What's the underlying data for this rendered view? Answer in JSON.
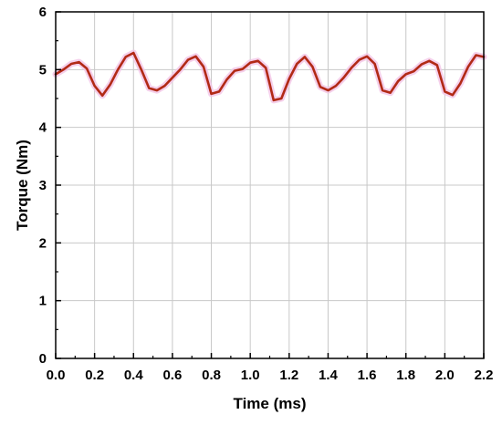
{
  "chart_data": {
    "type": "line",
    "title": "",
    "xlabel": "Time (ms)",
    "ylabel": "Torque (Nm)",
    "xlim": [
      0.0,
      2.2
    ],
    "ylim": [
      0,
      6
    ],
    "x_ticks": [
      "0.0",
      "0.2",
      "0.4",
      "0.6",
      "0.8",
      "1.0",
      "1.2",
      "1.4",
      "1.6",
      "1.8",
      "2.0",
      "2.2"
    ],
    "y_ticks": [
      "0",
      "1",
      "2",
      "3",
      "4",
      "5",
      "6"
    ],
    "grid": true,
    "legend": "none",
    "series": [
      {
        "color": "#b22a16",
        "x": [
          0.0,
          0.04,
          0.08,
          0.12,
          0.16,
          0.2,
          0.24,
          0.28,
          0.32,
          0.36,
          0.4,
          0.44,
          0.48,
          0.52,
          0.56,
          0.6,
          0.64,
          0.68,
          0.72,
          0.76,
          0.8,
          0.84,
          0.88,
          0.92,
          0.96,
          1.0,
          1.04,
          1.08,
          1.12,
          1.16,
          1.2,
          1.24,
          1.28,
          1.32,
          1.36,
          1.4,
          1.44,
          1.48,
          1.52,
          1.56,
          1.6,
          1.64,
          1.68,
          1.72,
          1.76,
          1.8,
          1.84,
          1.88,
          1.92,
          1.96,
          2.0,
          2.04,
          2.08,
          2.12,
          2.16,
          2.2
        ],
        "y": [
          4.92,
          5.0,
          5.1,
          5.13,
          5.02,
          4.72,
          4.55,
          4.74,
          5.0,
          5.22,
          5.29,
          5.0,
          4.68,
          4.64,
          4.72,
          4.86,
          5.0,
          5.17,
          5.23,
          5.05,
          4.58,
          4.62,
          4.83,
          4.98,
          5.01,
          5.12,
          5.15,
          5.03,
          4.47,
          4.5,
          4.84,
          5.1,
          5.22,
          5.05,
          4.7,
          4.64,
          4.72,
          4.86,
          5.03,
          5.17,
          5.23,
          5.1,
          4.64,
          4.6,
          4.8,
          4.92,
          4.97,
          5.09,
          5.15,
          5.08,
          4.62,
          4.56,
          4.76,
          5.05,
          5.25,
          5.22
        ]
      }
    ]
  }
}
